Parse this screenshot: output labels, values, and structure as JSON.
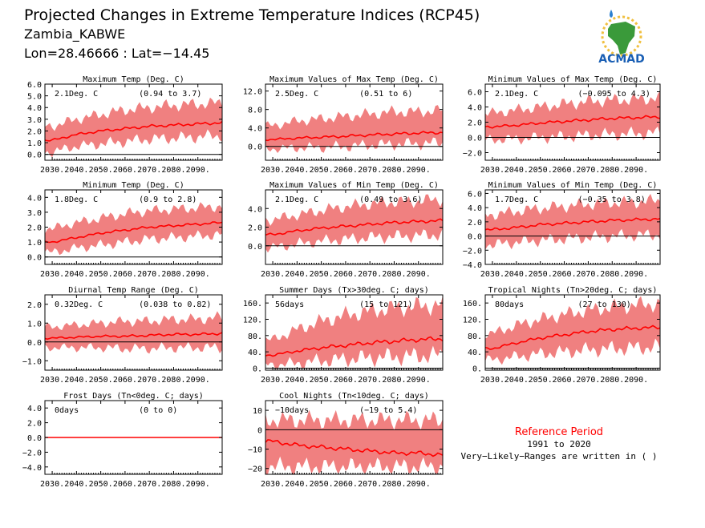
{
  "header": {
    "title": "Projected Changes in Extreme Temperature Indices (RCP45)",
    "location": "Zambia_KABWE",
    "coords": "Lon=28.46666 : Lat=−14.45"
  },
  "logo": {
    "text": "ACMAD"
  },
  "reference": {
    "title": "Reference Period",
    "years": "1991 to 2020",
    "note": "Very−Likely−Ranges are written in ( )"
  },
  "colors": {
    "band": "#f08080",
    "line": "#ff0000",
    "zero": "#000000",
    "ref_title": "#ff0000"
  },
  "chart_data": [
    {
      "type": "area",
      "title": "Maximum Temp (Deg. C)",
      "mean_label": "2.1Deg. C",
      "range_label": "(0.94 to 3.7)",
      "x": [
        2030,
        2040,
        2050,
        2060,
        2070,
        2080,
        2090,
        2099
      ],
      "xticks": [
        "2030.",
        "2040.",
        "2050.",
        "2060.",
        "2070.",
        "2080.",
        "2090."
      ],
      "mean": [
        1.2,
        1.7,
        2.0,
        2.2,
        2.4,
        2.5,
        2.6,
        2.7
      ],
      "low": [
        0.2,
        0.7,
        0.9,
        1.1,
        1.3,
        1.4,
        1.5,
        1.6
      ],
      "high": [
        2.4,
        3.0,
        3.4,
        3.8,
        4.0,
        4.2,
        4.3,
        4.4
      ],
      "ylim": [
        -0.5,
        6.0
      ],
      "yticks": [
        "6.0",
        "5.0",
        "4.0",
        "3.0",
        "2.0",
        "1.0",
        "0.0"
      ],
      "ytick_values": [
        6,
        5,
        4,
        3,
        2,
        1,
        0
      ]
    },
    {
      "type": "area",
      "title": "Maximum Values of Max Temp (Deg. C)",
      "mean_label": "2.5Deg. C",
      "range_label": "(0.51 to 6)",
      "x": [
        2030,
        2040,
        2050,
        2060,
        2070,
        2080,
        2090,
        2099
      ],
      "xticks": [
        "2030.",
        "2040.",
        "2050.",
        "2060.",
        "2070.",
        "2080.",
        "2090."
      ],
      "mean": [
        1.5,
        1.8,
        2.0,
        2.2,
        2.5,
        2.7,
        2.9,
        3.0
      ],
      "low": [
        -0.5,
        -0.3,
        -0.2,
        0.0,
        0.3,
        0.5,
        0.6,
        0.8
      ],
      "high": [
        4.5,
        5.5,
        6.0,
        6.5,
        7.0,
        7.5,
        7.5,
        7.8
      ],
      "ylim": [
        -3.0,
        13.5
      ],
      "yticks": [
        "12.0",
        "8.0",
        "4.0",
        "0.0"
      ],
      "ytick_values": [
        12,
        8,
        4,
        0
      ]
    },
    {
      "type": "area",
      "title": "Minimum Values of Max Temp (Deg. C)",
      "mean_label": "2.1Deg. C",
      "range_label": "(−0.095 to 4.3)",
      "x": [
        2030,
        2040,
        2050,
        2060,
        2070,
        2080,
        2090,
        2099
      ],
      "xticks": [
        "2030.",
        "2040.",
        "2050.",
        "2060.",
        "2070.",
        "2080.",
        "2090."
      ],
      "mean": [
        1.4,
        1.6,
        1.9,
        2.1,
        2.3,
        2.5,
        2.6,
        2.7
      ],
      "low": [
        -0.3,
        -0.2,
        0.0,
        0.1,
        0.3,
        0.4,
        0.5,
        0.6
      ],
      "high": [
        3.2,
        3.6,
        4.0,
        4.4,
        4.7,
        4.9,
        5.0,
        5.2
      ],
      "ylim": [
        -3.0,
        7.0
      ],
      "yticks": [
        "6.0",
        "4.0",
        "2.0",
        "0.0",
        "−2.0"
      ],
      "ytick_values": [
        6,
        4,
        2,
        0,
        -2
      ]
    },
    {
      "type": "area",
      "title": "Minimum Temp (Deg. C)",
      "mean_label": "1.8Deg. C",
      "range_label": "(0.9 to 2.8)",
      "x": [
        2030,
        2040,
        2050,
        2060,
        2070,
        2080,
        2090,
        2099
      ],
      "xticks": [
        "2030.",
        "2040.",
        "2050.",
        "2060.",
        "2070.",
        "2080.",
        "2090."
      ],
      "mean": [
        1.0,
        1.3,
        1.6,
        1.8,
        2.0,
        2.1,
        2.2,
        2.3
      ],
      "low": [
        0.3,
        0.6,
        0.8,
        1.0,
        1.2,
        1.3,
        1.4,
        1.5
      ],
      "high": [
        1.9,
        2.3,
        2.6,
        2.9,
        3.1,
        3.2,
        3.3,
        3.4
      ],
      "ylim": [
        -0.5,
        4.5
      ],
      "yticks": [
        "4.0",
        "3.0",
        "2.0",
        "1.0",
        "0.0"
      ],
      "ytick_values": [
        4,
        3,
        2,
        1,
        0
      ]
    },
    {
      "type": "area",
      "title": "Maximum Values of Min Temp (Deg. C)",
      "mean_label": "2.1Deg. C",
      "range_label": "(0.49 to 3.6)",
      "x": [
        2030,
        2040,
        2050,
        2060,
        2070,
        2080,
        2090,
        2099
      ],
      "xticks": [
        "2030.",
        "2040.",
        "2050.",
        "2060.",
        "2070.",
        "2080.",
        "2090."
      ],
      "mean": [
        1.2,
        1.6,
        1.9,
        2.1,
        2.3,
        2.5,
        2.6,
        2.7
      ],
      "low": [
        -0.2,
        0.2,
        0.5,
        0.7,
        0.9,
        1.0,
        1.1,
        1.2
      ],
      "high": [
        2.8,
        3.3,
        3.8,
        4.2,
        4.5,
        4.7,
        4.8,
        5.0
      ],
      "ylim": [
        -2.0,
        6.0
      ],
      "yticks": [
        "4.0",
        "2.0",
        "0.0"
      ],
      "ytick_values": [
        4,
        2,
        0
      ]
    },
    {
      "type": "area",
      "title": "Minimum Values of Min Temp (Deg. C)",
      "mean_label": "1.7Deg. C",
      "range_label": "(−0.35 to 3.8)",
      "x": [
        2030,
        2040,
        2050,
        2060,
        2070,
        2080,
        2090,
        2099
      ],
      "xticks": [
        "2030.",
        "2040.",
        "2050.",
        "2060.",
        "2070.",
        "2080.",
        "2090."
      ],
      "mean": [
        0.9,
        1.2,
        1.6,
        1.8,
        2.0,
        2.2,
        2.3,
        2.4
      ],
      "low": [
        -1.2,
        -0.9,
        -0.6,
        -0.4,
        -0.2,
        0.0,
        0.1,
        0.2
      ],
      "high": [
        3.0,
        3.5,
        3.9,
        4.2,
        4.5,
        4.7,
        4.8,
        5.0
      ],
      "ylim": [
        -4.0,
        6.5
      ],
      "yticks": [
        "6.0",
        "4.0",
        "2.0",
        "0.0",
        "−2.0",
        "−4.0"
      ],
      "ytick_values": [
        6,
        4,
        2,
        0,
        -2,
        -4
      ]
    },
    {
      "type": "area",
      "title": "Diurnal Temp Range (Deg. C)",
      "mean_label": "0.32Deg. C",
      "range_label": "(0.038 to 0.82)",
      "x": [
        2030,
        2040,
        2050,
        2060,
        2070,
        2080,
        2090,
        2099
      ],
      "xticks": [
        "2030.",
        "2040.",
        "2050.",
        "2060.",
        "2070.",
        "2080.",
        "2090."
      ],
      "mean": [
        0.2,
        0.25,
        0.3,
        0.3,
        0.35,
        0.4,
        0.4,
        0.45
      ],
      "low": [
        -0.3,
        -0.3,
        -0.3,
        -0.35,
        -0.35,
        -0.3,
        -0.3,
        -0.3
      ],
      "high": [
        0.8,
        0.9,
        1.0,
        1.1,
        1.1,
        1.2,
        1.2,
        1.3
      ],
      "ylim": [
        -1.5,
        2.5
      ],
      "yticks": [
        "2.0",
        "1.0",
        "0.0",
        "−1.0"
      ],
      "ytick_values": [
        2,
        1,
        0,
        -1
      ]
    },
    {
      "type": "area",
      "title": "Summer Days (Tx>30deg. C; days)",
      "mean_label": "56days",
      "range_label": "(15 to 121)",
      "x": [
        2030,
        2040,
        2050,
        2060,
        2070,
        2080,
        2090,
        2099
      ],
      "xticks": [
        "2030.",
        "2040.",
        "2050.",
        "2060.",
        "2070.",
        "2080.",
        "2090."
      ],
      "mean": [
        32,
        42,
        50,
        56,
        62,
        66,
        70,
        72
      ],
      "low": [
        8,
        12,
        18,
        22,
        26,
        28,
        30,
        32
      ],
      "high": [
        70,
        95,
        115,
        130,
        140,
        148,
        152,
        155
      ],
      "ylim": [
        -5,
        180
      ],
      "yticks": [
        "160.",
        "120.",
        "80.",
        "40.",
        "0."
      ],
      "ytick_values": [
        160,
        120,
        80,
        40,
        0
      ]
    },
    {
      "type": "area",
      "title": "Tropical Nights (Tn>20deg. C; days)",
      "mean_label": "80days",
      "range_label": "(27 to 130)",
      "x": [
        2030,
        2040,
        2050,
        2060,
        2070,
        2080,
        2090,
        2099
      ],
      "xticks": [
        "2030.",
        "2040.",
        "2050.",
        "2060.",
        "2070.",
        "2080.",
        "2090."
      ],
      "mean": [
        48,
        62,
        74,
        82,
        90,
        95,
        98,
        100
      ],
      "low": [
        20,
        28,
        35,
        40,
        45,
        48,
        50,
        52
      ],
      "high": [
        85,
        105,
        120,
        132,
        142,
        150,
        155,
        158
      ],
      "ylim": [
        -5,
        180
      ],
      "yticks": [
        "160.",
        "120.",
        "80.",
        "40.",
        "0."
      ],
      "ytick_values": [
        160,
        120,
        80,
        40,
        0
      ]
    },
    {
      "type": "area",
      "title": "Frost Days (Tn<0deg. C; days)",
      "mean_label": "0days",
      "range_label": "(0 to 0)",
      "x": [
        2030,
        2040,
        2050,
        2060,
        2070,
        2080,
        2090,
        2099
      ],
      "xticks": [
        "2030.",
        "2040.",
        "2050.",
        "2060.",
        "2070.",
        "2080.",
        "2090."
      ],
      "mean": [
        0,
        0,
        0,
        0,
        0,
        0,
        0,
        0
      ],
      "low": [
        0,
        0,
        0,
        0,
        0,
        0,
        0,
        0
      ],
      "high": [
        0,
        0,
        0,
        0,
        0,
        0,
        0,
        0
      ],
      "ylim": [
        -5.0,
        5.0
      ],
      "yticks": [
        "4.0",
        "2.0",
        "0.0",
        "−2.0",
        "−4.0"
      ],
      "ytick_values": [
        4,
        2,
        0,
        -2,
        -4
      ]
    },
    {
      "type": "area",
      "title": "Cool Nights (Tn<10deg. C; days)",
      "mean_label": "−10days",
      "range_label": "(−19 to 5.4)",
      "x": [
        2030,
        2040,
        2050,
        2060,
        2070,
        2080,
        2090,
        2099
      ],
      "xticks": [
        "2030.",
        "2040.",
        "2050.",
        "2060.",
        "2070.",
        "2080.",
        "2090."
      ],
      "mean": [
        -6,
        -8,
        -9,
        -10,
        -11,
        -12,
        -12,
        -13
      ],
      "low": [
        -19,
        -19,
        -19,
        -19,
        -19,
        -19,
        -19,
        -19
      ],
      "high": [
        5,
        5,
        5,
        5,
        5,
        5,
        5,
        5
      ],
      "ylim": [
        -23,
        15
      ],
      "yticks": [
        "10",
        "0",
        "−10",
        "−20"
      ],
      "ytick_values": [
        10,
        0,
        -10,
        -20
      ]
    }
  ]
}
